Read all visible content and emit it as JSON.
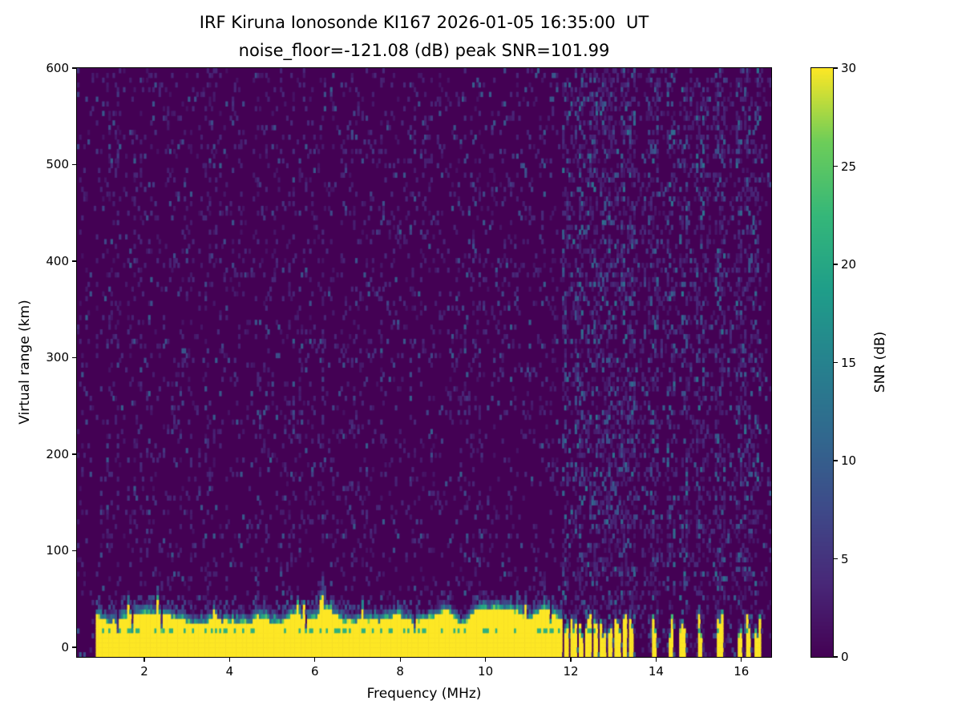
{
  "chart_data": {
    "type": "heatmap",
    "title": "IRF Kiruna Ionosonde KI167 2026-01-05 16:35:00  UT",
    "subtitle": "noise_floor=-121.08 (dB) peak SNR=101.99",
    "observatory": "IRF Kiruna Ionosonde",
    "station": "KI167",
    "timestamp_ut": "2026-01-05 16:35:00",
    "noise_floor_db": -121.08,
    "peak_snr_db": 101.99,
    "xlabel": "Frequency (MHz)",
    "ylabel": "Virtual range (km)",
    "colorbar_label": "SNR (dB)",
    "xlim": [
      0.42,
      16.7
    ],
    "ylim": [
      -10,
      600
    ],
    "x_ticks": [
      2,
      4,
      6,
      8,
      10,
      12,
      14,
      16
    ],
    "y_ticks": [
      0,
      100,
      200,
      300,
      400,
      500,
      600
    ],
    "colorbar_ticks": [
      0,
      5,
      10,
      15,
      20,
      25,
      30
    ],
    "value_range": [
      0,
      30
    ],
    "colormap": "viridis",
    "colormap_stops": [
      [
        0,
        68,
        1,
        84
      ],
      [
        0.125,
        72,
        40,
        120
      ],
      [
        0.25,
        62,
        74,
        137
      ],
      [
        0.375,
        49,
        104,
        142
      ],
      [
        0.5,
        38,
        130,
        142
      ],
      [
        0.625,
        31,
        158,
        137
      ],
      [
        0.75,
        53,
        183,
        121
      ],
      [
        0.875,
        109,
        205,
        89
      ],
      [
        1,
        253,
        231,
        37
      ]
    ],
    "data_freq_range": [
      0.88,
      16.45
    ],
    "echo_band": {
      "description": "Strong near-range echo saturating the colour scale at low virtual range",
      "continuous_range_mhz": [
        0.88,
        11.8
      ],
      "top_km_min": 20,
      "top_km_max": 50,
      "snr_db": 30
    },
    "stripe_frequencies_mhz": [
      11.9,
      12.07,
      12.24,
      12.41,
      12.58,
      12.75,
      12.92,
      13.09,
      13.26,
      13.43,
      13.95,
      14.35,
      14.62,
      15.05,
      15.5,
      15.95,
      16.15,
      16.38
    ],
    "noise": {
      "background_db": 0,
      "speckle_max_db": 12
    }
  }
}
